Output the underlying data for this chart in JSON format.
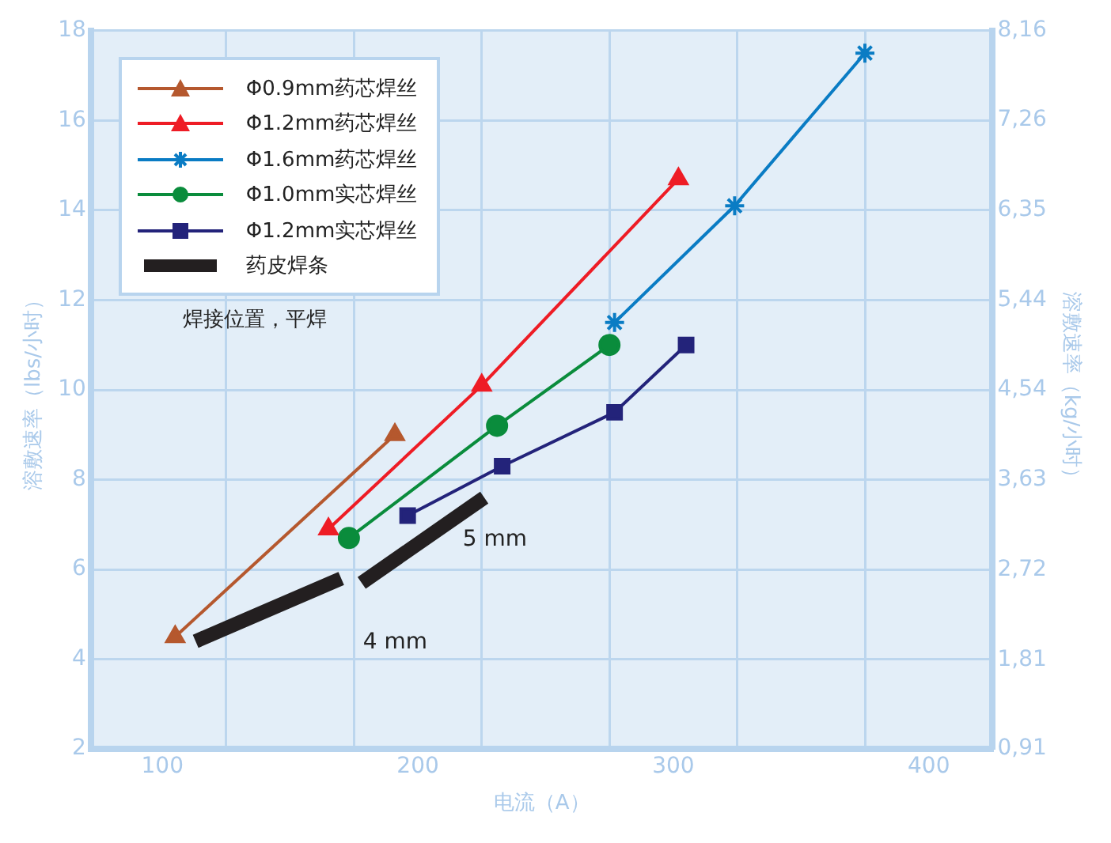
{
  "chart_data": {
    "type": "line",
    "xlabel": "电流（A）",
    "ylabel": "溶敷速率（lbs/小时）",
    "y2label": "溶敷速率（kg/小时）",
    "xlim": [
      72,
      425
    ],
    "xticks": [
      100,
      {
        "value": 125,
        "label": null
      },
      {
        "value": 175,
        "label": null
      },
      200,
      {
        "value": 225,
        "label": null
      },
      {
        "value": 275,
        "label": null
      },
      300,
      {
        "value": 325,
        "label": null
      },
      {
        "value": 375,
        "label": null
      },
      400
    ],
    "ylim": [
      2,
      18
    ],
    "yticks": [
      2,
      4,
      6,
      8,
      10,
      12,
      14,
      16,
      18
    ],
    "y2lim": [
      0.91,
      8.16
    ],
    "y2ticks": [
      {
        "value": 0.91,
        "label": "0,91"
      },
      {
        "value": 1.81,
        "label": "1,81"
      },
      {
        "value": 2.72,
        "label": "2,72"
      },
      {
        "value": 3.63,
        "label": "3,63"
      },
      {
        "value": 4.54,
        "label": "4,54"
      },
      {
        "value": 5.44,
        "label": "5,44"
      },
      {
        "value": 6.35,
        "label": "6,35"
      },
      {
        "value": 7.26,
        "label": "7,26"
      },
      {
        "value": 8.16,
        "label": "8,16"
      }
    ],
    "grid": true,
    "legend": "top left",
    "series": [
      {
        "name": "Φ0.9mm药芯焊丝",
        "color": "#b5582e",
        "marker": "triangle",
        "x": [
          105,
          191
        ],
        "values": [
          4.5,
          9.0
        ]
      },
      {
        "name": "Φ1.2mm药芯焊丝",
        "color": "#ee1c25",
        "marker": "triangle",
        "x": [
          165,
          225,
          302
        ],
        "values": [
          6.9,
          10.1,
          14.7
        ]
      },
      {
        "name": "Φ1.6mm药芯焊丝",
        "color": "#0a7cc4",
        "marker": "cross",
        "x": [
          277,
          324,
          375
        ],
        "values": [
          11.5,
          14.1,
          17.5
        ]
      },
      {
        "name": "Φ1.0mm实芯焊丝",
        "color": "#0a8c3c",
        "marker": "circle",
        "x": [
          173,
          231,
          275
        ],
        "values": [
          6.7,
          9.2,
          11.0
        ]
      },
      {
        "name": "Φ1.2mm实芯焊丝",
        "color": "#23237a",
        "marker": "square",
        "x": [
          196,
          233,
          277,
          305
        ],
        "values": [
          7.2,
          8.3,
          9.5,
          11.0
        ]
      },
      {
        "name": "药皮焊条",
        "color": "#231f20",
        "marker": "none",
        "x": [
          113,
          170,
          174,
          178,
          226
        ],
        "values": [
          4.4,
          5.8,
          null,
          5.7,
          7.6
        ]
      }
    ],
    "annotations": [
      "焊接位置，平焊",
      "5 mm",
      "4 mm"
    ]
  }
}
